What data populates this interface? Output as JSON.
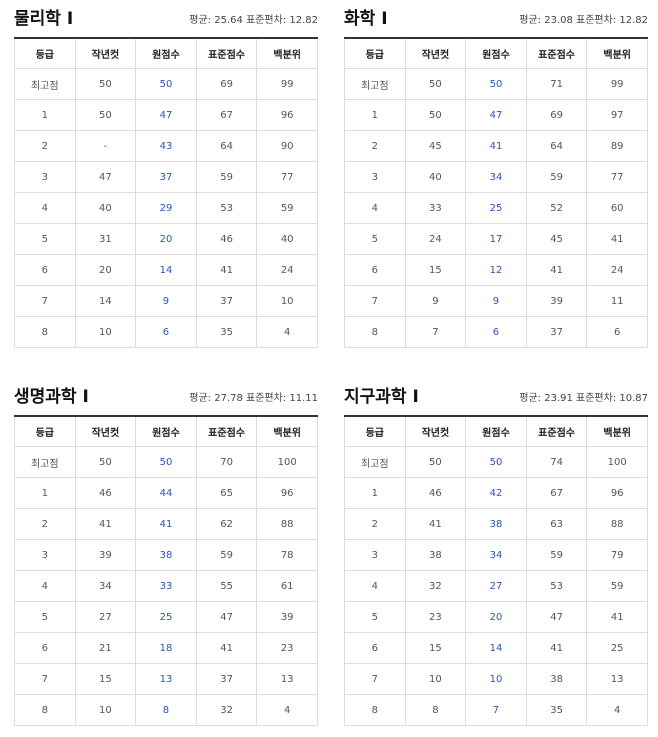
{
  "tables": [
    {
      "title": "물리학 Ⅰ",
      "stats": "평균: 25.64 표준편차: 12.82",
      "columns": [
        "등급",
        "작년컷",
        "원점수",
        "표준점수",
        "백분위"
      ],
      "rows": [
        [
          "최고점",
          "50",
          "50",
          "69",
          "99"
        ],
        [
          "1",
          "50",
          "47",
          "67",
          "96"
        ],
        [
          "2",
          "-",
          "43",
          "64",
          "90"
        ],
        [
          "3",
          "47",
          "37",
          "59",
          "77"
        ],
        [
          "4",
          "40",
          "29",
          "53",
          "59"
        ],
        [
          "5",
          "31",
          "20",
          "46",
          "40"
        ],
        [
          "6",
          "20",
          "14",
          "41",
          "24"
        ],
        [
          "7",
          "14",
          "9",
          "37",
          "10"
        ],
        [
          "8",
          "10",
          "6",
          "35",
          "4"
        ]
      ]
    },
    {
      "title": "화학 Ⅰ",
      "stats": "평균: 23.08 표준편차: 12.82",
      "columns": [
        "등급",
        "작년컷",
        "원점수",
        "표준점수",
        "백분위"
      ],
      "rows": [
        [
          "최고점",
          "50",
          "50",
          "71",
          "99"
        ],
        [
          "1",
          "50",
          "47",
          "69",
          "97"
        ],
        [
          "2",
          "45",
          "41",
          "64",
          "89"
        ],
        [
          "3",
          "40",
          "34",
          "59",
          "77"
        ],
        [
          "4",
          "33",
          "25",
          "52",
          "60"
        ],
        [
          "5",
          "24",
          "17",
          "45",
          "41"
        ],
        [
          "6",
          "15",
          "12",
          "41",
          "24"
        ],
        [
          "7",
          "9",
          "9",
          "39",
          "11"
        ],
        [
          "8",
          "7",
          "6",
          "37",
          "6"
        ]
      ]
    },
    {
      "title": "생명과학 Ⅰ",
      "stats": "평균: 27.78 표준편차: 11.11",
      "columns": [
        "등급",
        "작년컷",
        "원점수",
        "표준점수",
        "백분위"
      ],
      "rows": [
        [
          "최고점",
          "50",
          "50",
          "70",
          "100"
        ],
        [
          "1",
          "46",
          "44",
          "65",
          "96"
        ],
        [
          "2",
          "41",
          "41",
          "62",
          "88"
        ],
        [
          "3",
          "39",
          "38",
          "59",
          "78"
        ],
        [
          "4",
          "34",
          "33",
          "55",
          "61"
        ],
        [
          "5",
          "27",
          "25",
          "47",
          "39"
        ],
        [
          "6",
          "21",
          "18",
          "41",
          "23"
        ],
        [
          "7",
          "15",
          "13",
          "37",
          "13"
        ],
        [
          "8",
          "10",
          "8",
          "32",
          "4"
        ]
      ]
    },
    {
      "title": "지구과학 Ⅰ",
      "stats": "평균: 23.91 표준편차: 10.87",
      "columns": [
        "등급",
        "작년컷",
        "원점수",
        "표준점수",
        "백분위"
      ],
      "rows": [
        [
          "최고점",
          "50",
          "50",
          "74",
          "100"
        ],
        [
          "1",
          "46",
          "42",
          "67",
          "96"
        ],
        [
          "2",
          "41",
          "38",
          "63",
          "88"
        ],
        [
          "3",
          "38",
          "34",
          "59",
          "79"
        ],
        [
          "4",
          "32",
          "27",
          "53",
          "59"
        ],
        [
          "5",
          "23",
          "20",
          "47",
          "41"
        ],
        [
          "6",
          "15",
          "14",
          "41",
          "25"
        ],
        [
          "7",
          "10",
          "10",
          "38",
          "13"
        ],
        [
          "8",
          "8",
          "7",
          "35",
          "4"
        ]
      ]
    }
  ]
}
